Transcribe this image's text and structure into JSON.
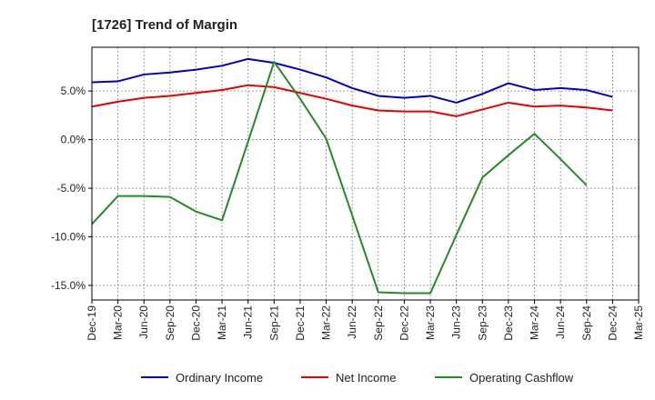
{
  "chart_data": {
    "type": "line",
    "title": "[1726]  Trend of Margin",
    "xlabel": "",
    "ylabel": "",
    "ylim": [
      -16.5,
      9.5
    ],
    "yticks": [
      5,
      0,
      -5,
      -10,
      -15
    ],
    "ytick_labels": [
      "5.0%",
      "0.0%",
      "-5.0%",
      "-10.0%",
      "-15.0%"
    ],
    "categories": [
      "Dec-19",
      "Mar-20",
      "Jun-20",
      "Sep-20",
      "Dec-20",
      "Mar-21",
      "Jun-21",
      "Sep-21",
      "Dec-21",
      "Mar-22",
      "Jun-22",
      "Sep-22",
      "Dec-22",
      "Mar-23",
      "Jun-23",
      "Sep-23",
      "Dec-23",
      "Mar-24",
      "Jun-24",
      "Sep-24",
      "Dec-24",
      "Mar-25"
    ],
    "grid": true,
    "legend_position": "bottom",
    "series": [
      {
        "name": "Ordinary Income",
        "color": "#0000cc",
        "values": [
          5.9,
          6.0,
          6.7,
          6.9,
          7.2,
          7.6,
          8.3,
          7.9,
          7.2,
          6.4,
          5.3,
          4.5,
          4.3,
          4.5,
          3.8,
          4.7,
          5.8,
          5.1,
          5.3,
          5.1,
          4.4,
          null
        ]
      },
      {
        "name": "Net Income",
        "color": "#e60000",
        "values": [
          3.4,
          3.9,
          4.3,
          4.5,
          4.8,
          5.1,
          5.6,
          5.4,
          4.8,
          4.2,
          3.5,
          3.0,
          2.9,
          2.9,
          2.4,
          3.1,
          3.8,
          3.4,
          3.5,
          3.3,
          3.0,
          null
        ]
      },
      {
        "name": "Operating Cashflow",
        "color": "#228b22",
        "values": [
          -8.7,
          -5.8,
          -5.8,
          -5.9,
          -7.4,
          -8.3,
          -0.2,
          8.0,
          4.2,
          0.1,
          -7.8,
          -15.7,
          -15.8,
          -15.8,
          -9.8,
          -3.9,
          -1.6,
          0.6,
          -2.0,
          -4.7,
          null,
          null
        ]
      }
    ]
  }
}
